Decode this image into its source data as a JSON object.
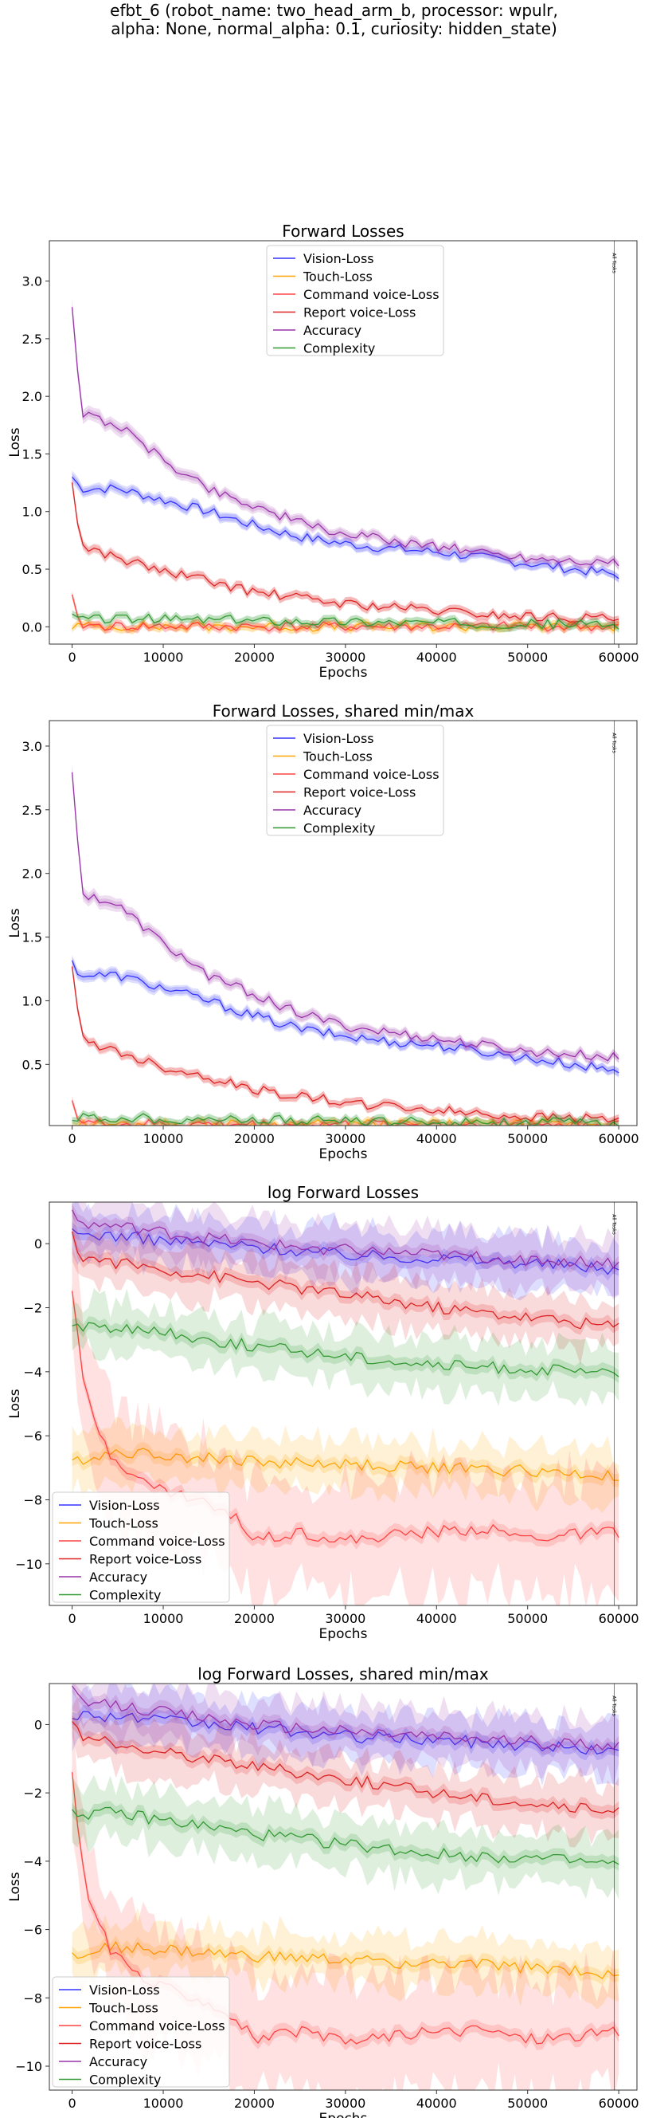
{
  "figure": {
    "title": "efbt_6 (robot_name: two_head_arm_b, processor: wpulr,\nalpha: None, normal_alpha: 0.1, curiosity: hidden_state)"
  },
  "chart_data": [
    {
      "type": "line",
      "title": "Forward Losses",
      "xlabel": "Epochs",
      "ylabel": "Loss",
      "xlim": [
        -2500,
        62000
      ],
      "ylim": [
        -0.15,
        3.35
      ],
      "xticks": [
        0,
        10000,
        20000,
        30000,
        40000,
        50000,
        60000
      ],
      "yticks": [
        0.0,
        0.5,
        1.0,
        1.5,
        2.0,
        2.5,
        3.0
      ],
      "ytick_labels": [
        "0.0",
        "0.5",
        "1.0",
        "1.5",
        "2.0",
        "2.5",
        "3.0"
      ],
      "log_scale": false,
      "legend_position": "top-center",
      "vline": {
        "x": 59500,
        "label": "All Tasks"
      },
      "series": [
        {
          "name": "Vision-Loss",
          "color": "#3333ff",
          "x": [
            0,
            1000,
            5000,
            10000,
            15000,
            20000,
            25000,
            30000,
            35000,
            40000,
            45000,
            50000,
            55000,
            60000
          ],
          "values": [
            1.3,
            1.2,
            1.2,
            1.1,
            1.0,
            0.88,
            0.78,
            0.72,
            0.68,
            0.65,
            0.6,
            0.55,
            0.5,
            0.45
          ]
        },
        {
          "name": "Touch-Loss",
          "color": "#ffa500",
          "x": [
            0,
            1000,
            5000,
            10000,
            20000,
            30000,
            40000,
            50000,
            60000
          ],
          "values": [
            0.01,
            0.005,
            0.003,
            0.002,
            0.002,
            0.002,
            0.002,
            0.002,
            0.002
          ]
        },
        {
          "name": "Command voice-Loss",
          "color": "#ff4444",
          "x": [
            0,
            500,
            1000,
            2000,
            5000,
            10000,
            20000,
            30000,
            40000,
            50000,
            60000
          ],
          "values": [
            0.25,
            0.06,
            0.02,
            0.01,
            0.005,
            0.003,
            0.002,
            0.002,
            0.002,
            0.002,
            0.002
          ]
        },
        {
          "name": "Report voice-Loss",
          "color": "#dd2222",
          "x": [
            0,
            1000,
            5000,
            10000,
            15000,
            20000,
            25000,
            30000,
            35000,
            40000,
            45000,
            50000,
            55000,
            60000
          ],
          "values": [
            1.25,
            0.7,
            0.6,
            0.48,
            0.4,
            0.3,
            0.25,
            0.2,
            0.17,
            0.14,
            0.11,
            0.09,
            0.08,
            0.07
          ]
        },
        {
          "name": "Accuracy",
          "color": "#9933aa",
          "x": [
            0,
            1000,
            5000,
            10000,
            15000,
            20000,
            25000,
            30000,
            35000,
            40000,
            45000,
            50000,
            55000,
            60000
          ],
          "values": [
            2.8,
            1.85,
            1.75,
            1.45,
            1.2,
            1.05,
            0.9,
            0.8,
            0.75,
            0.7,
            0.65,
            0.6,
            0.58,
            0.55
          ]
        },
        {
          "name": "Complexity",
          "color": "#339933",
          "x": [
            0,
            1000,
            5000,
            10000,
            20000,
            30000,
            40000,
            50000,
            60000
          ],
          "values": [
            0.08,
            0.07,
            0.07,
            0.065,
            0.055,
            0.045,
            0.035,
            0.025,
            0.02
          ]
        }
      ]
    },
    {
      "type": "line",
      "title": "Forward Losses, shared min/max",
      "xlabel": "Epochs",
      "ylabel": "Loss",
      "xlim": [
        -2500,
        62000
      ],
      "ylim": [
        0.02,
        3.2
      ],
      "xticks": [
        0,
        10000,
        20000,
        30000,
        40000,
        50000,
        60000
      ],
      "yticks": [
        0.5,
        1.0,
        1.5,
        2.0,
        2.5,
        3.0
      ],
      "ytick_labels": [
        "0.5",
        "1.0",
        "1.5",
        "2.0",
        "2.5",
        "3.0"
      ],
      "log_scale": false,
      "legend_position": "top-center",
      "vline": {
        "x": 59500,
        "label": "All Tasks"
      },
      "series": [
        {
          "name": "Vision-Loss",
          "color": "#3333ff",
          "x": [
            0,
            1000,
            5000,
            10000,
            15000,
            20000,
            25000,
            30000,
            35000,
            40000,
            45000,
            50000,
            55000,
            60000
          ],
          "values": [
            1.3,
            1.2,
            1.2,
            1.1,
            1.0,
            0.88,
            0.78,
            0.72,
            0.68,
            0.65,
            0.6,
            0.55,
            0.5,
            0.45
          ]
        },
        {
          "name": "Touch-Loss",
          "color": "#ffa500",
          "x": [
            0,
            1000,
            5000,
            10000,
            20000,
            30000,
            40000,
            50000,
            60000
          ],
          "values": [
            0.03,
            0.03,
            0.03,
            0.03,
            0.03,
            0.03,
            0.03,
            0.03,
            0.03
          ]
        },
        {
          "name": "Command voice-Loss",
          "color": "#ff4444",
          "x": [
            0,
            500,
            1000,
            2000,
            5000,
            10000,
            20000,
            30000,
            40000,
            50000,
            60000
          ],
          "values": [
            0.25,
            0.08,
            0.05,
            0.04,
            0.03,
            0.03,
            0.03,
            0.03,
            0.03,
            0.03,
            0.03
          ]
        },
        {
          "name": "Report voice-Loss",
          "color": "#dd2222",
          "x": [
            0,
            1000,
            5000,
            10000,
            15000,
            20000,
            25000,
            30000,
            35000,
            40000,
            45000,
            50000,
            55000,
            60000
          ],
          "values": [
            1.25,
            0.7,
            0.6,
            0.48,
            0.4,
            0.3,
            0.25,
            0.2,
            0.17,
            0.14,
            0.11,
            0.09,
            0.08,
            0.07
          ]
        },
        {
          "name": "Accuracy",
          "color": "#9933aa",
          "x": [
            0,
            1000,
            5000,
            10000,
            15000,
            20000,
            25000,
            30000,
            35000,
            40000,
            45000,
            50000,
            55000,
            60000
          ],
          "values": [
            2.8,
            1.85,
            1.75,
            1.45,
            1.2,
            1.05,
            0.9,
            0.8,
            0.75,
            0.7,
            0.65,
            0.6,
            0.58,
            0.55
          ]
        },
        {
          "name": "Complexity",
          "color": "#339933",
          "x": [
            0,
            1000,
            5000,
            10000,
            20000,
            30000,
            40000,
            50000,
            60000
          ],
          "values": [
            0.09,
            0.08,
            0.08,
            0.075,
            0.065,
            0.055,
            0.05,
            0.045,
            0.04
          ]
        }
      ]
    },
    {
      "type": "line",
      "title": "log Forward Losses",
      "xlabel": "Epochs",
      "ylabel": "Loss",
      "xlim": [
        -2500,
        62000
      ],
      "ylim": [
        -11.3,
        1.3
      ],
      "xticks": [
        0,
        10000,
        20000,
        30000,
        40000,
        50000,
        60000
      ],
      "yticks": [
        0,
        -2,
        -4,
        -6,
        -8,
        -10
      ],
      "ytick_labels": [
        "0",
        "−2",
        "−4",
        "−6",
        "−8",
        "−10"
      ],
      "log_scale": true,
      "legend_position": "bottom-left",
      "vline": {
        "x": 59500,
        "label": "All Tasks"
      },
      "series": [
        {
          "name": "Vision-Loss",
          "color": "#3333ff",
          "x": [
            0,
            5000,
            10000,
            20000,
            30000,
            40000,
            50000,
            60000
          ],
          "values": [
            0.3,
            0.25,
            0.1,
            -0.1,
            -0.35,
            -0.45,
            -0.6,
            -0.8
          ]
        },
        {
          "name": "Touch-Loss",
          "color": "#ffa500",
          "x": [
            0,
            5000,
            10000,
            20000,
            30000,
            40000,
            50000,
            60000
          ],
          "values": [
            -6.8,
            -6.5,
            -6.6,
            -6.8,
            -6.9,
            -7.0,
            -7.1,
            -7.3
          ]
        },
        {
          "name": "Command voice-Loss",
          "color": "#ff4444",
          "x": [
            0,
            1000,
            2000,
            4000,
            6000,
            8000,
            10000,
            14000,
            18000,
            20000,
            25000,
            30000,
            35000,
            40000,
            45000,
            50000,
            55000,
            60000
          ],
          "values": [
            -1.4,
            -4.0,
            -5.2,
            -6.5,
            -7.0,
            -7.5,
            -7.7,
            -8.0,
            -8.6,
            -9.2,
            -9.0,
            -9.3,
            -9.1,
            -9.0,
            -8.9,
            -9.2,
            -9.1,
            -9.0
          ]
        },
        {
          "name": "Report voice-Loss",
          "color": "#dd2222",
          "x": [
            0,
            1000,
            5000,
            10000,
            20000,
            30000,
            40000,
            50000,
            60000
          ],
          "values": [
            0.2,
            -0.4,
            -0.6,
            -0.8,
            -1.2,
            -1.6,
            -2.0,
            -2.3,
            -2.6
          ]
        },
        {
          "name": "Accuracy",
          "color": "#9933aa",
          "x": [
            0,
            1000,
            5000,
            10000,
            20000,
            30000,
            40000,
            50000,
            60000
          ],
          "values": [
            1.0,
            0.6,
            0.55,
            0.35,
            0.0,
            -0.2,
            -0.35,
            -0.5,
            -0.6
          ]
        },
        {
          "name": "Complexity",
          "color": "#339933",
          "x": [
            0,
            1000,
            5000,
            10000,
            20000,
            30000,
            40000,
            50000,
            60000
          ],
          "values": [
            -2.5,
            -2.6,
            -2.6,
            -2.8,
            -3.2,
            -3.5,
            -3.8,
            -3.9,
            -4.1
          ]
        }
      ]
    },
    {
      "type": "line",
      "title": "log Forward Losses, shared min/max",
      "xlabel": "Epochs",
      "ylabel": "Loss",
      "xlim": [
        -2500,
        62000
      ],
      "ylim": [
        -10.7,
        1.2
      ],
      "xticks": [
        0,
        10000,
        20000,
        30000,
        40000,
        50000,
        60000
      ],
      "yticks": [
        0,
        -2,
        -4,
        -6,
        -8,
        -10
      ],
      "ytick_labels": [
        "0",
        "−2",
        "−4",
        "−6",
        "−8",
        "−10"
      ],
      "log_scale": true,
      "legend_position": "bottom-left",
      "vline": {
        "x": 59500,
        "label": "All Tasks"
      },
      "series": [
        {
          "name": "Vision-Loss",
          "color": "#3333ff",
          "x": [
            0,
            5000,
            10000,
            20000,
            30000,
            40000,
            50000,
            60000
          ],
          "values": [
            0.3,
            0.25,
            0.1,
            -0.1,
            -0.35,
            -0.45,
            -0.6,
            -0.8
          ]
        },
        {
          "name": "Touch-Loss",
          "color": "#ffa500",
          "x": [
            0,
            5000,
            10000,
            20000,
            30000,
            40000,
            50000,
            60000
          ],
          "values": [
            -6.8,
            -6.5,
            -6.6,
            -6.8,
            -6.9,
            -7.0,
            -7.1,
            -7.3
          ]
        },
        {
          "name": "Command voice-Loss",
          "color": "#ff4444",
          "x": [
            0,
            1000,
            2000,
            4000,
            6000,
            8000,
            10000,
            14000,
            18000,
            20000,
            25000,
            30000,
            35000,
            40000,
            45000,
            50000,
            55000,
            60000
          ],
          "values": [
            -1.4,
            -4.0,
            -5.2,
            -6.5,
            -7.0,
            -7.5,
            -7.7,
            -8.0,
            -8.6,
            -9.2,
            -9.0,
            -9.3,
            -9.1,
            -9.0,
            -8.9,
            -9.2,
            -9.1,
            -9.0
          ]
        },
        {
          "name": "Report voice-Loss",
          "color": "#dd2222",
          "x": [
            0,
            1000,
            5000,
            10000,
            20000,
            30000,
            40000,
            50000,
            60000
          ],
          "values": [
            0.2,
            -0.4,
            -0.6,
            -0.8,
            -1.2,
            -1.6,
            -2.0,
            -2.3,
            -2.6
          ]
        },
        {
          "name": "Accuracy",
          "color": "#9933aa",
          "x": [
            0,
            1000,
            5000,
            10000,
            20000,
            30000,
            40000,
            50000,
            60000
          ],
          "values": [
            1.0,
            0.6,
            0.55,
            0.35,
            0.0,
            -0.2,
            -0.35,
            -0.5,
            -0.6
          ]
        },
        {
          "name": "Complexity",
          "color": "#339933",
          "x": [
            0,
            1000,
            5000,
            10000,
            20000,
            30000,
            40000,
            50000,
            60000
          ],
          "values": [
            -2.5,
            -2.6,
            -2.6,
            -2.8,
            -3.2,
            -3.5,
            -3.8,
            -3.9,
            -4.1
          ]
        }
      ]
    }
  ]
}
